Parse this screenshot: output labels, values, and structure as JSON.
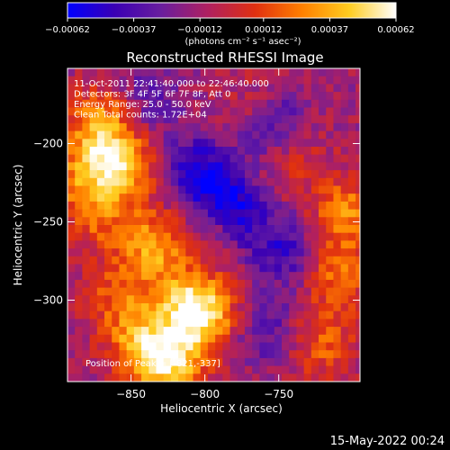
{
  "chart_data": {
    "type": "heatmap",
    "title": "Reconstructed RHESSI Image",
    "xlabel": "Heliocentric X (arcsec)",
    "ylabel": "Heliocentric Y (arcsec)",
    "xlim": [
      -893,
      -695
    ],
    "ylim": [
      -352,
      -152
    ],
    "x_ticks": [
      -850,
      -800,
      -750
    ],
    "x_tick_labels": [
      "−850",
      "−800",
      "−750"
    ],
    "y_ticks": [
      -200,
      -250,
      -300
    ],
    "y_tick_labels": [
      "−200",
      "−250",
      "−300"
    ],
    "colorbar": {
      "range": [
        -0.00062,
        0.00062
      ],
      "ticks": [
        -0.00062,
        -0.00037,
        -0.00012,
        0.00012,
        0.00037,
        0.00062
      ],
      "tick_labels": [
        "−0.00062",
        "−0.00037",
        "−0.00012",
        "0.00012",
        "0.00037",
        "0.00062"
      ],
      "unit_label": "(photons cm⁻² s⁻¹ asec⁻²)",
      "colors": [
        "#0000ff",
        "#3a00b4",
        "#6a1e9e",
        "#b02060",
        "#e03010",
        "#ff8000",
        "#ffcc20",
        "#ffffff"
      ]
    },
    "annotations": [
      "11-Oct-2011 22:41:40.000 to 22:46:40.000",
      "Detectors: 3F 4F 5F 6F 7F 8F, Att 0",
      "Energy Range: 25.0 - 50.0 keV",
      "Clean     Total counts: 1.72E+04"
    ],
    "peak_label": "Position of Peak = [-821,-337]",
    "peak": {
      "x": -821,
      "y": -337
    },
    "grid": false,
    "regions": [
      {
        "x": -870,
        "y": -185,
        "value": 0.0004
      },
      {
        "x": -880,
        "y": -215,
        "value": 0.00035
      },
      {
        "x": -855,
        "y": -215,
        "value": 0.0005
      },
      {
        "x": -875,
        "y": -245,
        "value": 0.0003
      },
      {
        "x": -835,
        "y": -265,
        "value": 0.00045
      },
      {
        "x": -860,
        "y": -295,
        "value": 0.00025
      },
      {
        "x": -815,
        "y": -300,
        "value": 0.00035
      },
      {
        "x": -800,
        "y": -310,
        "value": 0.00055
      },
      {
        "x": -825,
        "y": -340,
        "value": 0.00062
      },
      {
        "x": -845,
        "y": -325,
        "value": 0.0004
      },
      {
        "x": -765,
        "y": -175,
        "value": 0.0002
      },
      {
        "x": -740,
        "y": -210,
        "value": 0.00018
      },
      {
        "x": -705,
        "y": -245,
        "value": 0.0004
      },
      {
        "x": -710,
        "y": -285,
        "value": 0.00035
      },
      {
        "x": -720,
        "y": -330,
        "value": 0.00028
      },
      {
        "x": -790,
        "y": -255,
        "value": 0.00015
      },
      {
        "x": -790,
        "y": -230,
        "value": -0.0004
      },
      {
        "x": -755,
        "y": -185,
        "value": -0.00035
      },
      {
        "x": -810,
        "y": -215,
        "value": -0.0003
      },
      {
        "x": -775,
        "y": -250,
        "value": -0.00028
      },
      {
        "x": -745,
        "y": -270,
        "value": -0.0003
      },
      {
        "x": -760,
        "y": -320,
        "value": -0.00022
      },
      {
        "x": -840,
        "y": -170,
        "value": -0.0002
      }
    ]
  },
  "footer": {
    "timestamp": "15-May-2022 00:24"
  }
}
